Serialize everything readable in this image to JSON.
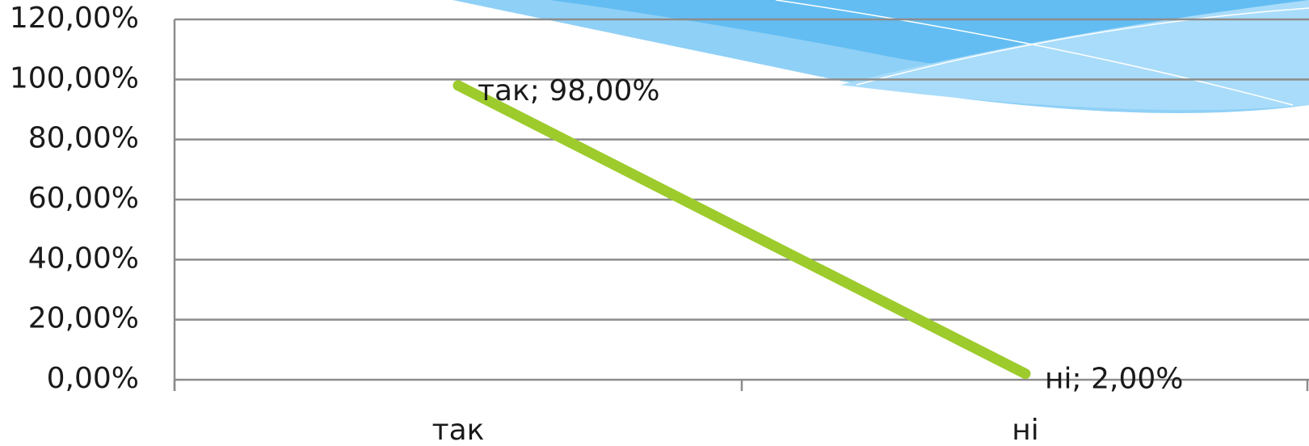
{
  "chart_data": {
    "type": "line",
    "categories": [
      "так",
      "ні"
    ],
    "values": [
      98,
      2
    ],
    "value_labels": [
      "так; 98,00%",
      "ні; 2,00%"
    ],
    "color": "#9dcb2c",
    "ylim": [
      0,
      120
    ],
    "yticks": [
      {
        "value": 0,
        "label": "0,00%"
      },
      {
        "value": 20,
        "label": "20,00%"
      },
      {
        "value": 40,
        "label": "40,00%"
      },
      {
        "value": 60,
        "label": "60,00%"
      },
      {
        "value": 80,
        "label": "80,00%"
      },
      {
        "value": 100,
        "label": "100,00%"
      },
      {
        "value": 120,
        "label": "120,00%"
      }
    ],
    "grid": true
  }
}
